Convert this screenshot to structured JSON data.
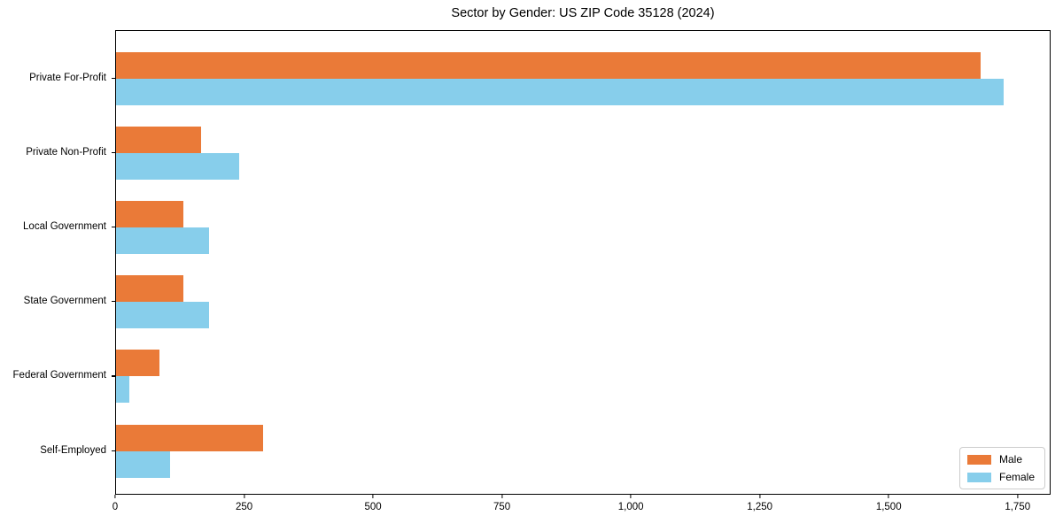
{
  "chart_data": {
    "type": "bar",
    "orientation": "horizontal",
    "title": "Sector by Gender: US ZIP Code 35128 (2024)",
    "xlabel": "",
    "ylabel": "",
    "categories": [
      "Private For-Profit",
      "Private Non-Profit",
      "Local Government",
      "State Government",
      "Federal Government",
      "Self-Employed"
    ],
    "series": [
      {
        "name": "Male",
        "color": "#EA7A38",
        "values": [
          1680,
          165,
          130,
          130,
          85,
          285
        ]
      },
      {
        "name": "Female",
        "color": "#87CEEB",
        "values": [
          1725,
          240,
          180,
          180,
          25,
          105
        ]
      }
    ],
    "x_ticks": [
      0,
      250,
      500,
      750,
      1000,
      1250,
      1500,
      1750
    ],
    "x_tick_labels": [
      "0",
      "250",
      "500",
      "750",
      "1,000",
      "1,250",
      "1,500",
      "1,750"
    ],
    "xlim": [
      0,
      1814
    ],
    "grid": false,
    "legend": {
      "position": "lower right",
      "entries": [
        "Male",
        "Female"
      ]
    }
  }
}
